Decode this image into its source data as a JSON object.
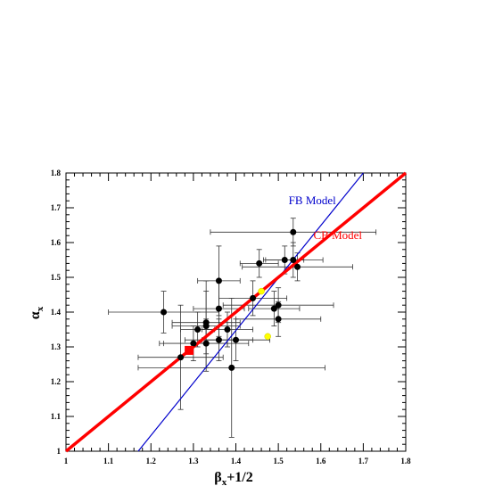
{
  "chart_data": {
    "type": "scatter",
    "xlabel": {
      "main": "β",
      "sub": "x",
      "suffix": "+1/2"
    },
    "ylabel": {
      "main": "α",
      "sub": "x"
    },
    "xlim": [
      1.0,
      1.8
    ],
    "ylim": [
      1.0,
      1.8
    ],
    "xticks": [
      "1",
      "1.1",
      "1.2",
      "1.3",
      "1.4",
      "1.5",
      "1.6",
      "1.7",
      "1.8"
    ],
    "yticks": [
      "1",
      "1.1",
      "1.2",
      "1.3",
      "1.4",
      "1.5",
      "1.6",
      "1.7",
      "1.8"
    ],
    "points": [
      {
        "x": 1.535,
        "y": 1.63,
        "xerr": 0.195,
        "yerr": 0.04
      },
      {
        "x": 1.455,
        "y": 1.54,
        "xerr": 0.045,
        "yerr": 0.04
      },
      {
        "x": 1.515,
        "y": 1.55,
        "xerr": 0.045,
        "yerr": 0.04
      },
      {
        "x": 1.535,
        "y": 1.55,
        "xerr": 0.07,
        "yerr": 0.05
      },
      {
        "x": 1.545,
        "y": 1.53,
        "xerr": 0.13,
        "yerr": 0.04
      },
      {
        "x": 1.36,
        "y": 1.49,
        "xerr": 0.05,
        "yerr": 0.1
      },
      {
        "x": 1.44,
        "y": 1.44,
        "xerr": 0.08,
        "yerr": 0.05
      },
      {
        "x": 1.23,
        "y": 1.4,
        "xerr": 0.13,
        "yerr": 0.06
      },
      {
        "x": 1.36,
        "y": 1.41,
        "xerr": 0.06,
        "yerr": 0.08
      },
      {
        "x": 1.49,
        "y": 1.41,
        "xerr": 0.06,
        "yerr": 0.05
      },
      {
        "x": 1.5,
        "y": 1.42,
        "xerr": 0.13,
        "yerr": 0.05
      },
      {
        "x": 1.5,
        "y": 1.38,
        "xerr": 0.1,
        "yerr": 0.05
      },
      {
        "x": 1.33,
        "y": 1.36,
        "xerr": 0.08,
        "yerr": 0.13
      },
      {
        "x": 1.33,
        "y": 1.37,
        "xerr": 0.08,
        "yerr": 0.09
      },
      {
        "x": 1.31,
        "y": 1.35,
        "xerr": 0.04,
        "yerr": 0.05
      },
      {
        "x": 1.38,
        "y": 1.35,
        "xerr": 0.06,
        "yerr": 0.05
      },
      {
        "x": 1.3,
        "y": 1.31,
        "xerr": 0.08,
        "yerr": 0.05
      },
      {
        "x": 1.33,
        "y": 1.31,
        "xerr": 0.1,
        "yerr": 0.07
      },
      {
        "x": 1.36,
        "y": 1.32,
        "xerr": 0.08,
        "yerr": 0.06
      },
      {
        "x": 1.4,
        "y": 1.32,
        "xerr": 0.08,
        "yerr": 0.06
      },
      {
        "x": 1.27,
        "y": 1.27,
        "xerr": 0.1,
        "yerr": 0.15
      },
      {
        "x": 1.39,
        "y": 1.24,
        "xerr": 0.22,
        "yerr": 0.2
      }
    ],
    "highlighted_points": [
      {
        "x": 1.46,
        "y": 1.46,
        "color": "#ffff00"
      },
      {
        "x": 1.475,
        "y": 1.33,
        "color": "#ffff00"
      }
    ],
    "square_point": {
      "x": 1.29,
      "y": 1.29,
      "color": "#ff0000"
    },
    "lines": [
      {
        "name": "FB Model",
        "color": "#0000cc",
        "from": [
          1.17,
          1.0
        ],
        "to": [
          1.7,
          1.8
        ]
      },
      {
        "name": "CB Model",
        "color": "#ff0000",
        "from": [
          1.0,
          1.0
        ],
        "to": [
          1.8,
          1.8
        ]
      }
    ],
    "annotations": [
      {
        "text": "FB Model",
        "color": "#0000cc",
        "x": 1.58,
        "y": 1.71
      },
      {
        "text": "CB Model",
        "color": "#ff0000",
        "x": 1.64,
        "y": 1.61
      }
    ]
  }
}
